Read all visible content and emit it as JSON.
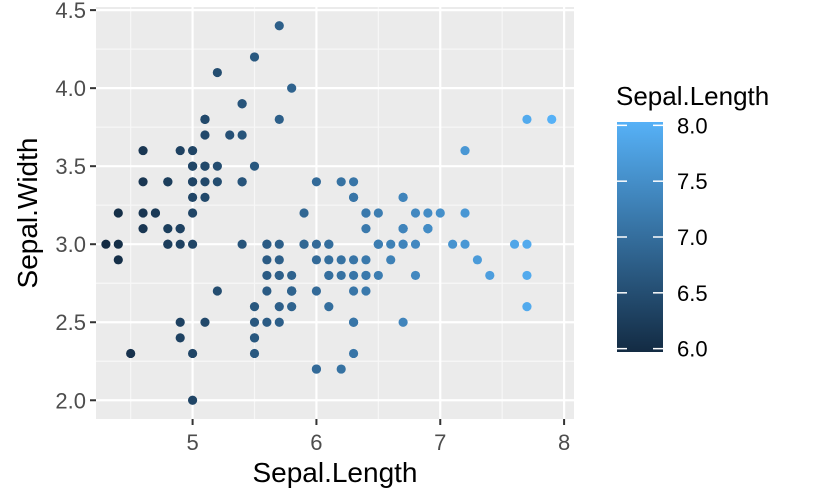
{
  "chart_data": {
    "type": "scatter",
    "title": "",
    "xlabel": "Sepal.Length",
    "ylabel": "Sepal.Width",
    "xlim": [
      4.22,
      8.08
    ],
    "ylim": [
      1.88,
      4.52
    ],
    "x_ticks": [
      5,
      6,
      7,
      8
    ],
    "y_ticks": [
      2.0,
      2.5,
      3.0,
      3.5,
      4.0,
      4.5
    ],
    "x_tick_labels": [
      "5",
      "6",
      "7",
      "8"
    ],
    "y_tick_labels": [
      "2.0",
      "2.5",
      "3.0",
      "3.5",
      "4.0",
      "4.5"
    ],
    "grid": true,
    "panel_background": "#ebebeb",
    "color_scale": {
      "variable": "Sepal.Length",
      "low_color": "#132b43",
      "high_color": "#56b1f7",
      "domain": [
        4.3,
        7.9
      ],
      "legend_breaks": [
        6.0,
        6.5,
        7.0,
        7.5,
        8.0
      ],
      "legend_labels": [
        "6.0",
        "6.5",
        "7.0",
        "7.5",
        "8.0"
      ],
      "legend_position": "right"
    },
    "points": [
      [
        5.1,
        3.5
      ],
      [
        4.9,
        3.0
      ],
      [
        4.7,
        3.2
      ],
      [
        4.6,
        3.1
      ],
      [
        5.0,
        3.6
      ],
      [
        5.4,
        3.9
      ],
      [
        4.6,
        3.4
      ],
      [
        5.0,
        3.4
      ],
      [
        4.4,
        2.9
      ],
      [
        4.9,
        3.1
      ],
      [
        5.4,
        3.7
      ],
      [
        4.8,
        3.4
      ],
      [
        4.8,
        3.0
      ],
      [
        4.3,
        3.0
      ],
      [
        5.8,
        4.0
      ],
      [
        5.7,
        4.4
      ],
      [
        5.4,
        3.9
      ],
      [
        5.1,
        3.5
      ],
      [
        5.7,
        3.8
      ],
      [
        5.1,
        3.8
      ],
      [
        5.4,
        3.4
      ],
      [
        5.1,
        3.7
      ],
      [
        4.6,
        3.6
      ],
      [
        5.1,
        3.3
      ],
      [
        4.8,
        3.4
      ],
      [
        5.0,
        3.0
      ],
      [
        5.0,
        3.4
      ],
      [
        5.2,
        3.5
      ],
      [
        5.2,
        3.4
      ],
      [
        4.7,
        3.2
      ],
      [
        4.8,
        3.1
      ],
      [
        5.4,
        3.4
      ],
      [
        5.2,
        4.1
      ],
      [
        5.5,
        4.2
      ],
      [
        4.9,
        3.1
      ],
      [
        5.0,
        3.2
      ],
      [
        5.5,
        3.5
      ],
      [
        4.9,
        3.6
      ],
      [
        4.4,
        3.0
      ],
      [
        5.1,
        3.4
      ],
      [
        5.0,
        3.5
      ],
      [
        4.5,
        2.3
      ],
      [
        4.4,
        3.2
      ],
      [
        5.0,
        3.5
      ],
      [
        5.1,
        3.8
      ],
      [
        4.8,
        3.0
      ],
      [
        5.1,
        3.8
      ],
      [
        4.6,
        3.2
      ],
      [
        5.3,
        3.7
      ],
      [
        5.0,
        3.3
      ],
      [
        7.0,
        3.2
      ],
      [
        6.4,
        3.2
      ],
      [
        6.9,
        3.1
      ],
      [
        5.5,
        2.3
      ],
      [
        6.5,
        2.8
      ],
      [
        5.7,
        2.8
      ],
      [
        6.3,
        3.3
      ],
      [
        4.9,
        2.4
      ],
      [
        6.6,
        2.9
      ],
      [
        5.2,
        2.7
      ],
      [
        5.0,
        2.0
      ],
      [
        5.9,
        3.0
      ],
      [
        6.0,
        2.2
      ],
      [
        6.1,
        2.9
      ],
      [
        5.6,
        2.9
      ],
      [
        6.7,
        3.1
      ],
      [
        5.6,
        3.0
      ],
      [
        5.8,
        2.7
      ],
      [
        6.2,
        2.2
      ],
      [
        5.6,
        2.5
      ],
      [
        5.9,
        3.2
      ],
      [
        6.1,
        2.8
      ],
      [
        6.3,
        2.5
      ],
      [
        6.1,
        2.8
      ],
      [
        6.4,
        2.9
      ],
      [
        6.6,
        3.0
      ],
      [
        6.8,
        2.8
      ],
      [
        6.7,
        3.0
      ],
      [
        6.0,
        2.9
      ],
      [
        5.7,
        2.6
      ],
      [
        5.5,
        2.4
      ],
      [
        5.5,
        2.4
      ],
      [
        5.8,
        2.7
      ],
      [
        6.0,
        2.7
      ],
      [
        5.4,
        3.0
      ],
      [
        6.0,
        3.4
      ],
      [
        6.7,
        3.1
      ],
      [
        6.3,
        2.3
      ],
      [
        5.6,
        3.0
      ],
      [
        5.5,
        2.5
      ],
      [
        5.5,
        2.6
      ],
      [
        6.1,
        3.0
      ],
      [
        5.8,
        2.6
      ],
      [
        5.0,
        2.3
      ],
      [
        5.6,
        2.7
      ],
      [
        5.7,
        3.0
      ],
      [
        5.7,
        2.9
      ],
      [
        6.2,
        2.9
      ],
      [
        5.1,
        2.5
      ],
      [
        5.7,
        2.8
      ],
      [
        6.3,
        3.3
      ],
      [
        5.8,
        2.7
      ],
      [
        7.1,
        3.0
      ],
      [
        6.3,
        2.9
      ],
      [
        6.5,
        3.0
      ],
      [
        7.6,
        3.0
      ],
      [
        4.9,
        2.5
      ],
      [
        7.3,
        2.9
      ],
      [
        6.7,
        2.5
      ],
      [
        7.2,
        3.6
      ],
      [
        6.5,
        3.2
      ],
      [
        6.4,
        2.7
      ],
      [
        6.8,
        3.0
      ],
      [
        5.7,
        2.5
      ],
      [
        5.8,
        2.8
      ],
      [
        6.4,
        3.2
      ],
      [
        6.5,
        3.0
      ],
      [
        7.7,
        3.8
      ],
      [
        7.7,
        2.6
      ],
      [
        6.0,
        2.2
      ],
      [
        6.9,
        3.2
      ],
      [
        5.6,
        2.8
      ],
      [
        7.7,
        2.8
      ],
      [
        6.3,
        2.7
      ],
      [
        6.7,
        3.3
      ],
      [
        7.2,
        3.2
      ],
      [
        6.2,
        2.8
      ],
      [
        6.1,
        3.0
      ],
      [
        6.4,
        2.8
      ],
      [
        7.2,
        3.0
      ],
      [
        7.4,
        2.8
      ],
      [
        7.9,
        3.8
      ],
      [
        6.4,
        2.8
      ],
      [
        6.3,
        2.8
      ],
      [
        6.1,
        2.6
      ],
      [
        7.7,
        3.0
      ],
      [
        6.3,
        3.4
      ],
      [
        6.4,
        3.1
      ],
      [
        6.0,
        3.0
      ],
      [
        6.9,
        3.1
      ],
      [
        6.7,
        3.1
      ],
      [
        6.9,
        3.1
      ],
      [
        5.8,
        2.7
      ],
      [
        6.8,
        3.2
      ],
      [
        6.7,
        3.3
      ],
      [
        6.7,
        3.0
      ],
      [
        6.3,
        2.5
      ],
      [
        6.5,
        3.0
      ],
      [
        6.2,
        3.4
      ],
      [
        5.9,
        3.0
      ]
    ]
  }
}
